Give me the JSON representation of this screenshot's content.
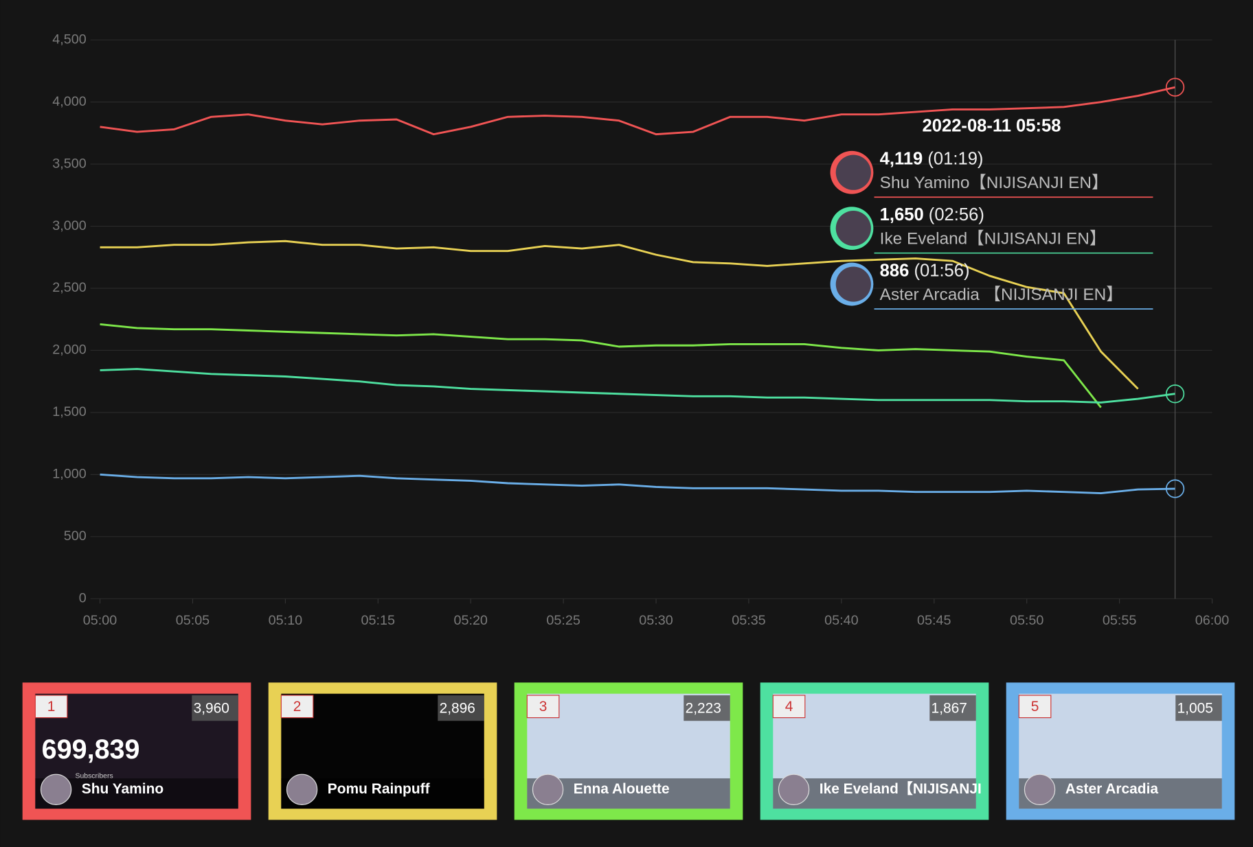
{
  "chart_data": {
    "type": "line",
    "x": [
      "05:00",
      "05:02",
      "05:04",
      "05:06",
      "05:08",
      "05:10",
      "05:12",
      "05:14",
      "05:16",
      "05:18",
      "05:20",
      "05:22",
      "05:24",
      "05:26",
      "05:28",
      "05:30",
      "05:32",
      "05:34",
      "05:36",
      "05:38",
      "05:40",
      "05:42",
      "05:44",
      "05:46",
      "05:48",
      "05:50",
      "05:52",
      "05:54",
      "05:56",
      "05:58"
    ],
    "series": [
      {
        "color": "#f05454",
        "values": [
          3800,
          3760,
          3780,
          3880,
          3900,
          3850,
          3820,
          3850,
          3860,
          3740,
          3800,
          3880,
          3890,
          3880,
          3850,
          3740,
          3760,
          3880,
          3880,
          3850,
          3900,
          3900,
          3920,
          3940,
          3940,
          3950,
          3960,
          4000,
          4050,
          4119
        ]
      },
      {
        "color": "#e8d154",
        "values": [
          2830,
          2830,
          2850,
          2850,
          2870,
          2880,
          2850,
          2850,
          2820,
          2830,
          2800,
          2800,
          2840,
          2820,
          2850,
          2770,
          2710,
          2700,
          2680,
          2700,
          2720,
          2730,
          2740,
          2720,
          2600,
          2510,
          2460,
          1990,
          1690,
          null
        ]
      },
      {
        "color": "#7ee84a",
        "values": [
          2210,
          2180,
          2170,
          2170,
          2160,
          2150,
          2140,
          2130,
          2120,
          2130,
          2110,
          2090,
          2090,
          2080,
          2030,
          2040,
          2040,
          2050,
          2050,
          2050,
          2020,
          2000,
          2010,
          2000,
          1990,
          1950,
          1920,
          1540,
          null,
          null
        ]
      },
      {
        "color": "#4ee0a0",
        "values": [
          1840,
          1850,
          1830,
          1810,
          1800,
          1790,
          1770,
          1750,
          1720,
          1710,
          1690,
          1680,
          1670,
          1660,
          1650,
          1640,
          1630,
          1630,
          1620,
          1620,
          1610,
          1600,
          1600,
          1600,
          1600,
          1590,
          1590,
          1580,
          1610,
          1650
        ]
      },
      {
        "color": "#6aaee8",
        "values": [
          1000,
          980,
          970,
          970,
          980,
          970,
          980,
          990,
          970,
          960,
          950,
          930,
          920,
          910,
          920,
          900,
          890,
          890,
          890,
          880,
          870,
          870,
          860,
          860,
          860,
          870,
          860,
          850,
          880,
          886
        ]
      }
    ],
    "xlim": [
      "05:00",
      "06:00"
    ],
    "xticks": [
      "05:00",
      "05:05",
      "05:10",
      "05:15",
      "05:20",
      "05:25",
      "05:30",
      "05:35",
      "05:40",
      "05:45",
      "05:50",
      "05:55",
      "06:00"
    ],
    "ylim": [
      0,
      4500
    ],
    "yticks": [
      0,
      500,
      {
        "value": 1000,
        "label": "1,000"
      },
      {
        "value": 1500,
        "label": "1,500"
      },
      {
        "value": 2000,
        "label": "2,000"
      },
      {
        "value": 2500,
        "label": "2,500"
      },
      {
        "value": 3000,
        "label": "3,000"
      },
      {
        "value": 3500,
        "label": "3,500"
      },
      {
        "value": 4000,
        "label": "4,000"
      },
      {
        "value": 4500,
        "label": "4,500"
      }
    ],
    "grid": true,
    "tooltip": {
      "title": "2022-08-11 05:58",
      "entries": [
        {
          "value": "4,119",
          "duration": "(01:19)",
          "name": "Shu Yamino【NIJISANJI EN】",
          "color": "#f05454"
        },
        {
          "value": "1,650",
          "duration": "(02:56)",
          "name": "Ike Eveland【NIJISANJI EN】",
          "color": "#4ee0a0"
        },
        {
          "value": "886",
          "duration": "(01:56)",
          "name": "Aster Arcadia 【NIJISANJI EN】",
          "color": "#6aaee8"
        }
      ]
    }
  },
  "cards": [
    {
      "rank": "1",
      "value": "3,960",
      "name": "Shu Yamino",
      "color": "#f05454",
      "subs": "699,839",
      "subs_label": "Subscribers"
    },
    {
      "rank": "2",
      "value": "2,896",
      "name": "Pomu Rainpuff",
      "color": "#e8d154"
    },
    {
      "rank": "3",
      "value": "2,223",
      "name": "Enna Alouette",
      "color": "#7ee84a"
    },
    {
      "rank": "4",
      "value": "1,867",
      "name": "Ike Eveland【NIJISANJI",
      "color": "#4ee0a0"
    },
    {
      "rank": "5",
      "value": "1,005",
      "name": "Aster Arcadia",
      "color": "#6aaee8"
    }
  ]
}
